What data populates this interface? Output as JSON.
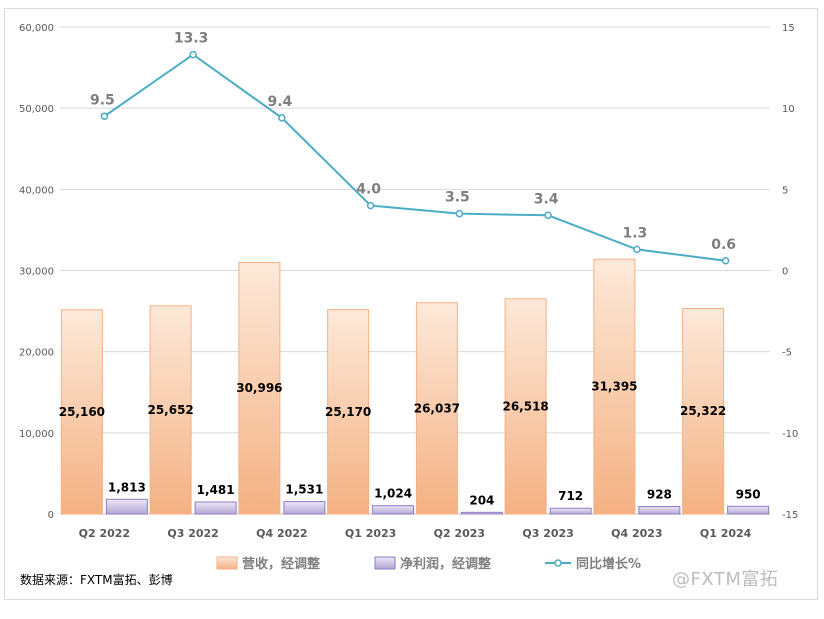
{
  "chart_data": {
    "type": "bar+line",
    "categories": [
      "Q2 2022",
      "Q3 2022",
      "Q4 2022",
      "Q1 2023",
      "Q2 2023",
      "Q3 2023",
      "Q4 2023",
      "Q1 2024"
    ],
    "series": [
      {
        "name": "营收，经调整",
        "kind": "bar",
        "axis": "left",
        "color": "#f4b183",
        "values": [
          25160,
          25652,
          30996,
          25170,
          26037,
          26518,
          31395,
          25322
        ],
        "labels": [
          "25,160",
          "25,652",
          "30,996",
          "25,170",
          "26,037",
          "26,518",
          "31,395",
          "25,322"
        ]
      },
      {
        "name": "净利润，经调整",
        "kind": "bar",
        "axis": "left",
        "color": "#b4a7d6",
        "values": [
          1813,
          1481,
          1531,
          1024,
          204,
          712,
          928,
          950
        ],
        "labels": [
          "1,813",
          "1,481",
          "1,531",
          "1,024",
          "204",
          "712",
          "928",
          "950"
        ]
      },
      {
        "name": "同比增长%",
        "kind": "line",
        "axis": "right",
        "color": "#4bacc6",
        "values": [
          9.5,
          13.3,
          9.4,
          4.0,
          3.5,
          3.4,
          1.3,
          0.6
        ],
        "labels": [
          "9.5",
          "13.3",
          "9.4",
          "4.0",
          "3.5",
          "3.4",
          "1.3",
          "0.6"
        ]
      }
    ],
    "ylim_left": [
      0,
      60000
    ],
    "yticks_left": [
      "0",
      "10,000",
      "20,000",
      "30,000",
      "40,000",
      "50,000",
      "60,000"
    ],
    "ylim_right": [
      -15,
      15
    ],
    "yticks_right": [
      "-15",
      "-10",
      "-5",
      "0",
      "5",
      "10",
      "15"
    ],
    "grid": true,
    "legend": "bottom"
  },
  "source": "数据来源：FXTM富拓、彭博",
  "watermark": "@FXTM富拓"
}
